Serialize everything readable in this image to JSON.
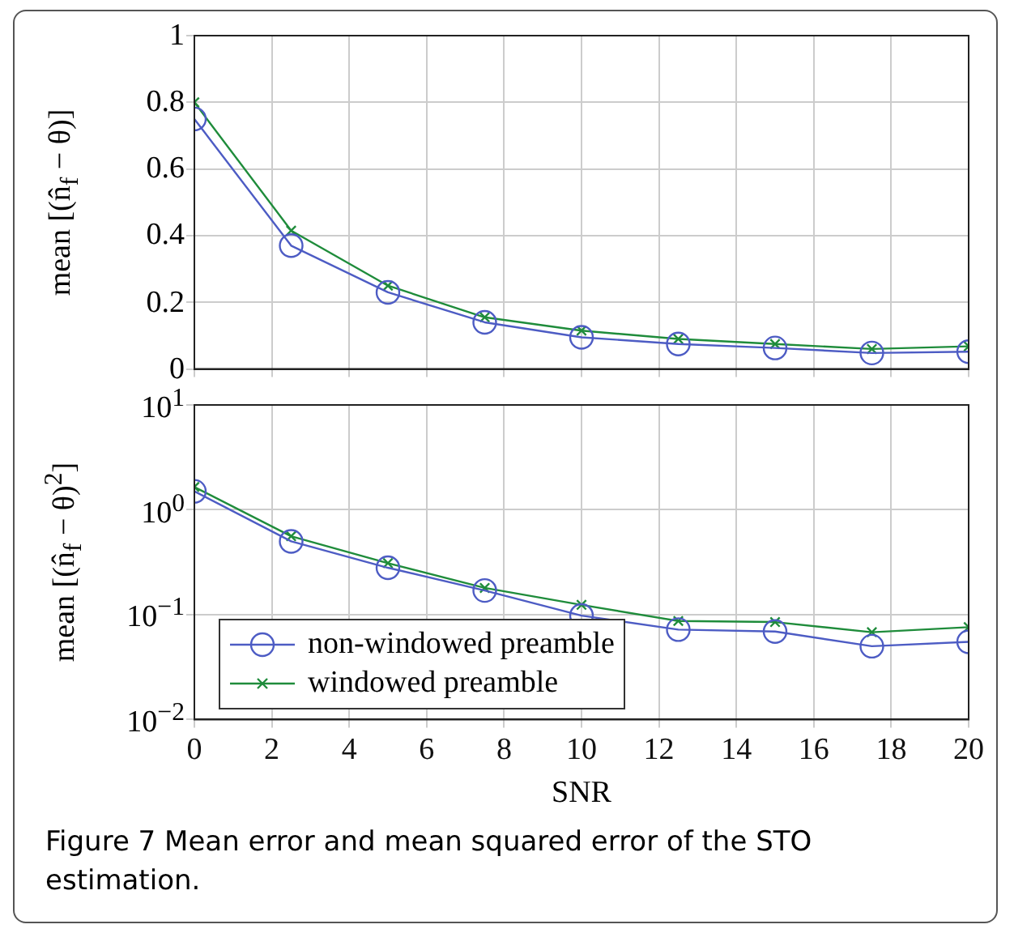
{
  "chart_data": [
    {
      "type": "line",
      "ylabel": "mean [(n̂$_{f}$ − θ)]",
      "x": [
        0,
        2.5,
        5,
        7.5,
        10,
        12.5,
        15,
        17.5,
        20
      ],
      "xlim": [
        0,
        20
      ],
      "xticks": [
        0,
        2,
        4,
        6,
        8,
        10,
        12,
        14,
        16,
        18,
        20
      ],
      "ylim": [
        0,
        1
      ],
      "yticks": [
        0,
        0.2,
        0.4,
        0.6,
        0.8,
        1
      ],
      "tick_labels": "y",
      "grid": true,
      "legend": false,
      "line_style": "solid",
      "series": [
        {
          "color": "#4d5cc4",
          "marker": "circle",
          "values": [
            0.75,
            0.37,
            0.23,
            0.14,
            0.095,
            0.075,
            0.063,
            0.048,
            0.052
          ]
        },
        {
          "color": "#1f8c3b",
          "marker": "cross",
          "values": [
            0.8,
            0.415,
            0.25,
            0.155,
            0.115,
            0.09,
            0.075,
            0.06,
            0.068
          ]
        }
      ]
    },
    {
      "type": "line",
      "ylabel": "mean [(n̂$_{f}$ − θ)$^{2}$]",
      "xlabel": "SNR",
      "x": [
        0,
        2.5,
        5,
        7.5,
        10,
        12.5,
        15,
        17.5,
        20
      ],
      "xlim": [
        0,
        20
      ],
      "xticks": [
        0,
        2,
        4,
        6,
        8,
        10,
        12,
        14,
        16,
        18,
        20
      ],
      "log": "y",
      "ylim": [
        0.01,
        10
      ],
      "yticks": [
        {
          "value": 0.01,
          "label": "10$^{−2}$"
        },
        {
          "value": 0.1,
          "label": "10$^{−1}$"
        },
        {
          "value": 1,
          "label": "10$^{0}$"
        },
        {
          "value": 10,
          "label": "10$^{1}$"
        }
      ],
      "grid": true,
      "legend": "bottom left",
      "line_style": "solid",
      "annotations": [
        "Figure 7 Mean error and mean squared error of the STO estimation."
      ],
      "series": [
        {
          "name": "non-windowed preamble",
          "color": "#4d5cc4",
          "marker": "circle",
          "values": [
            1.5,
            0.5,
            0.28,
            0.17,
            0.098,
            0.072,
            0.069,
            0.05,
            0.055
          ]
        },
        {
          "name": "windowed preamble",
          "color": "#1f8c3b",
          "marker": "cross",
          "values": [
            1.65,
            0.56,
            0.31,
            0.18,
            0.124,
            0.087,
            0.085,
            0.068,
            0.076
          ]
        }
      ]
    }
  ]
}
